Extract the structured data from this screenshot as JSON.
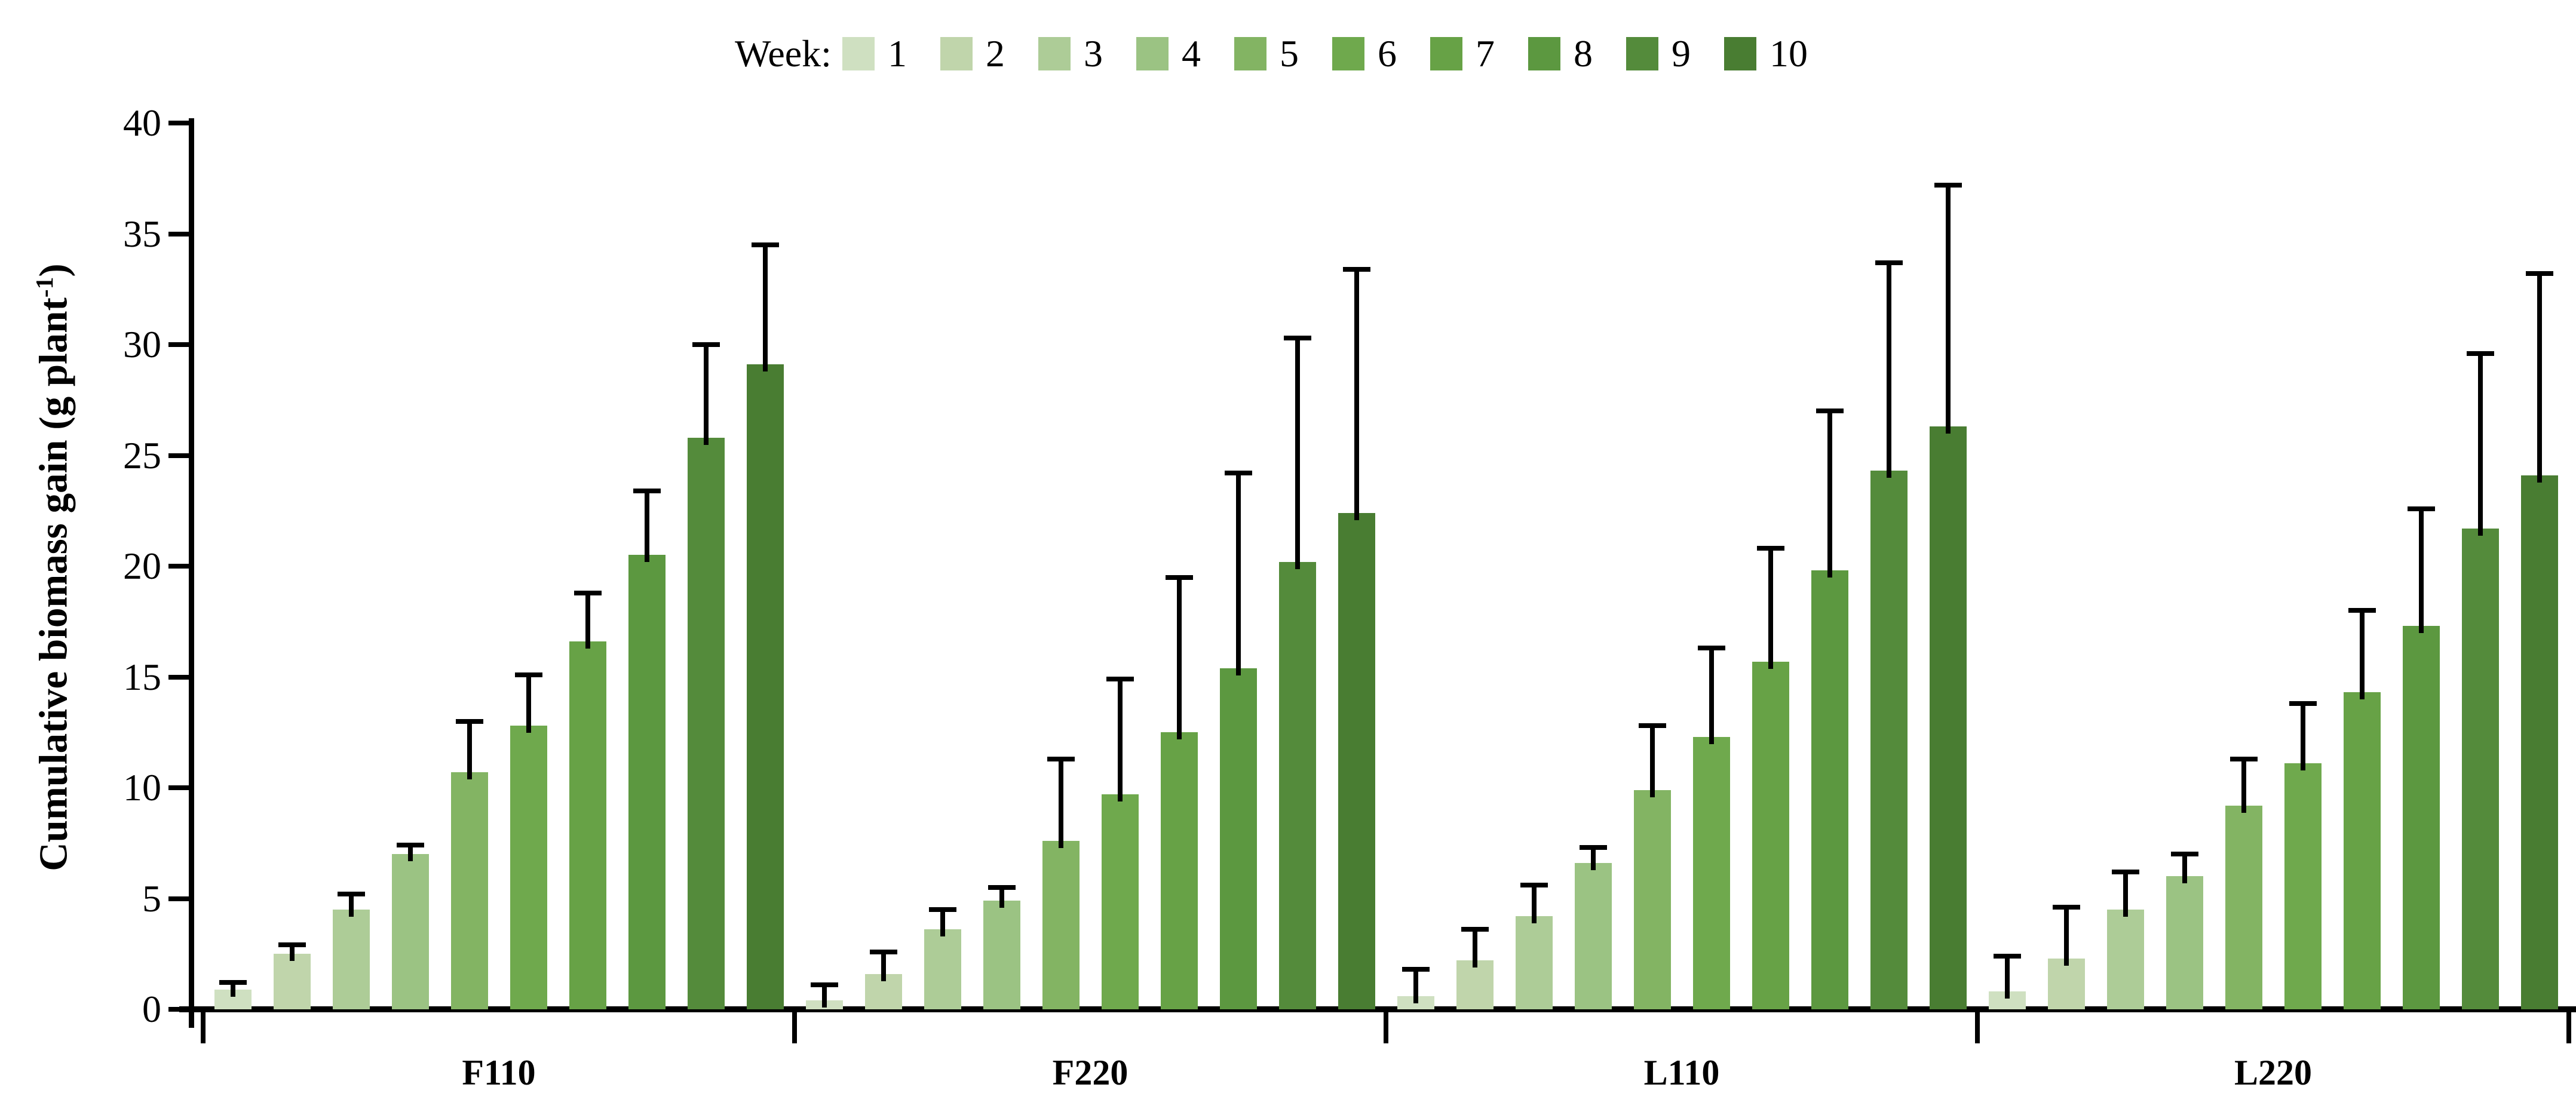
{
  "legend": {
    "title": "Week:",
    "items": [
      {
        "label": "1",
        "color": "#cfe0c1"
      },
      {
        "label": "2",
        "color": "#c0d5ab"
      },
      {
        "label": "3",
        "color": "#adcc97"
      },
      {
        "label": "4",
        "color": "#9bc383"
      },
      {
        "label": "5",
        "color": "#83b463"
      },
      {
        "label": "6",
        "color": "#6fa94d"
      },
      {
        "label": "7",
        "color": "#67a246"
      },
      {
        "label": "8",
        "color": "#5c9840"
      },
      {
        "label": "9",
        "color": "#548b3b"
      },
      {
        "label": "10",
        "color": "#497d32"
      }
    ]
  },
  "y_axis": {
    "title_prefix": "Cumulative biomass gain (g plant",
    "title_sup": "-1",
    "title_suffix": ")",
    "tick_labels": [
      "0",
      "5",
      "10",
      "15",
      "20",
      "25",
      "30",
      "35",
      "40"
    ]
  },
  "x_axis": {
    "categories": [
      "F110",
      "F220",
      "L110",
      "L220"
    ]
  },
  "chart_data": {
    "type": "bar",
    "title": "",
    "xlabel": "",
    "ylabel": "Cumulative biomass gain (g plant-1)",
    "ylim": [
      0,
      40
    ],
    "yticks": [
      0,
      5,
      10,
      15,
      20,
      25,
      30,
      35,
      40
    ],
    "grid": false,
    "legend_position": "top",
    "legend_title": "Week:",
    "categories": [
      "F110",
      "F220",
      "L110",
      "L220"
    ],
    "series": [
      {
        "name": "1",
        "color": "#cfe0c1",
        "values": [
          0.9,
          0.4,
          0.6,
          0.8
        ],
        "err_up": [
          0.3,
          0.7,
          1.2,
          1.6
        ]
      },
      {
        "name": "2",
        "color": "#c0d5ab",
        "values": [
          2.5,
          1.6,
          2.2,
          2.3
        ],
        "err_up": [
          0.4,
          1.0,
          1.4,
          2.3
        ]
      },
      {
        "name": "3",
        "color": "#adcc97",
        "values": [
          4.5,
          3.6,
          4.2,
          4.5
        ],
        "err_up": [
          0.7,
          0.9,
          1.4,
          1.7
        ]
      },
      {
        "name": "4",
        "color": "#9bc383",
        "values": [
          7.0,
          4.9,
          6.6,
          6.0
        ],
        "err_up": [
          0.4,
          0.6,
          0.7,
          1.0
        ]
      },
      {
        "name": "5",
        "color": "#83b463",
        "values": [
          10.7,
          7.6,
          9.9,
          9.2
        ],
        "err_up": [
          2.3,
          3.7,
          2.9,
          2.1
        ]
      },
      {
        "name": "6",
        "color": "#6fa94d",
        "values": [
          12.8,
          9.7,
          12.3,
          11.1
        ],
        "err_up": [
          2.3,
          5.2,
          4.0,
          2.7
        ]
      },
      {
        "name": "7",
        "color": "#67a246",
        "values": [
          16.6,
          12.5,
          15.7,
          14.3
        ],
        "err_up": [
          2.2,
          7.0,
          5.1,
          3.7
        ]
      },
      {
        "name": "8",
        "color": "#5c9840",
        "values": [
          20.5,
          15.4,
          19.8,
          17.3
        ],
        "err_up": [
          2.9,
          8.8,
          7.2,
          5.3
        ]
      },
      {
        "name": "9",
        "color": "#548b3b",
        "values": [
          25.8,
          20.2,
          24.3,
          21.7
        ],
        "err_up": [
          4.2,
          10.1,
          9.4,
          7.9
        ]
      },
      {
        "name": "10",
        "color": "#497d32",
        "values": [
          29.1,
          22.4,
          26.3,
          24.1
        ],
        "err_up": [
          5.4,
          11.0,
          10.9,
          9.1
        ]
      }
    ]
  }
}
